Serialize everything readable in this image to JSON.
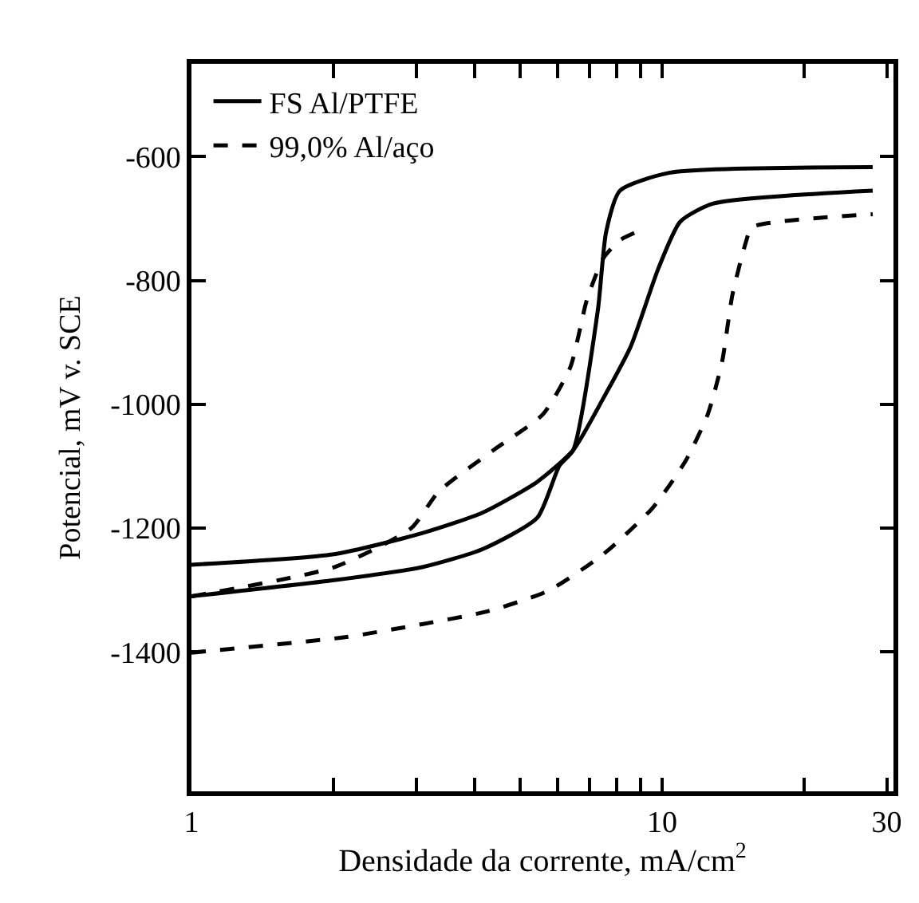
{
  "chart_data": {
    "type": "line",
    "xlabel": "Densidade da corrente, mA/cm$^{2}$",
    "ylabel": "Potencial, mV v. SCE",
    "log": "x",
    "xlim": [
      1,
      31
    ],
    "xticks": [
      1,
      {
        "value": 2,
        "label": null
      },
      {
        "value": 3,
        "label": null
      },
      {
        "value": 4,
        "label": null
      },
      {
        "value": 5,
        "label": null
      },
      {
        "value": 6,
        "label": null
      },
      {
        "value": 7,
        "label": null
      },
      {
        "value": 8,
        "label": null
      },
      {
        "value": 9,
        "label": null
      },
      10,
      {
        "value": 20,
        "label": null
      },
      30
    ],
    "ylim": [
      -1625,
      -450
    ],
    "yticks": [
      -600,
      -800,
      -1000,
      -1200,
      -1400
    ],
    "legend": "top left",
    "marker": "none",
    "series": [
      {
        "name": "FS Al/PTFE",
        "color": "#000000",
        "line_style": "solid",
        "x": [
          1,
          2.01,
          3.09,
          4.15,
          5.43,
          6.47,
          7.5,
          8.58,
          9.81,
          10.92,
          12.8,
          28
        ],
        "values": [
          -1259,
          -1242,
          -1208,
          -1175,
          -1125,
          -1074,
          -990,
          -906,
          -781,
          -705,
          -676,
          -655
        ]
      },
      {
        "color": "#000000",
        "line_style": "solid",
        "x": [
          1,
          2.01,
          3.09,
          4.15,
          5.43,
          6.05,
          6.47,
          7.3,
          7.6,
          8.13,
          10.35,
          28
        ],
        "values": [
          -1310,
          -1284,
          -1263,
          -1234,
          -1183,
          -1099,
          -1074,
          -848,
          -722,
          -655,
          -626,
          -617
        ]
      },
      {
        "name": "99,0% Al/aço",
        "color": "#000000",
        "line_style": "dashed",
        "x": [
          1,
          2.01,
          2.93,
          3.35,
          4.38,
          5.58,
          6.38,
          6.92,
          7.5,
          8.13,
          9.05
        ],
        "values": [
          -1310,
          -1263,
          -1200,
          -1141,
          -1074,
          -1016,
          -940,
          -831,
          -764,
          -735,
          -718
        ]
      },
      {
        "color": "#000000",
        "line_style": "dashed",
        "x": [
          1,
          2.12,
          3.09,
          4.27,
          5.73,
          7.5,
          9.55,
          11.22,
          12.5,
          13.4,
          14.1,
          15.1,
          15.5,
          28
        ],
        "values": [
          -1401,
          -1376,
          -1355,
          -1334,
          -1301,
          -1242,
          -1167,
          -1091,
          -1016,
          -932,
          -823,
          -735,
          -714,
          -693
        ]
      }
    ]
  }
}
